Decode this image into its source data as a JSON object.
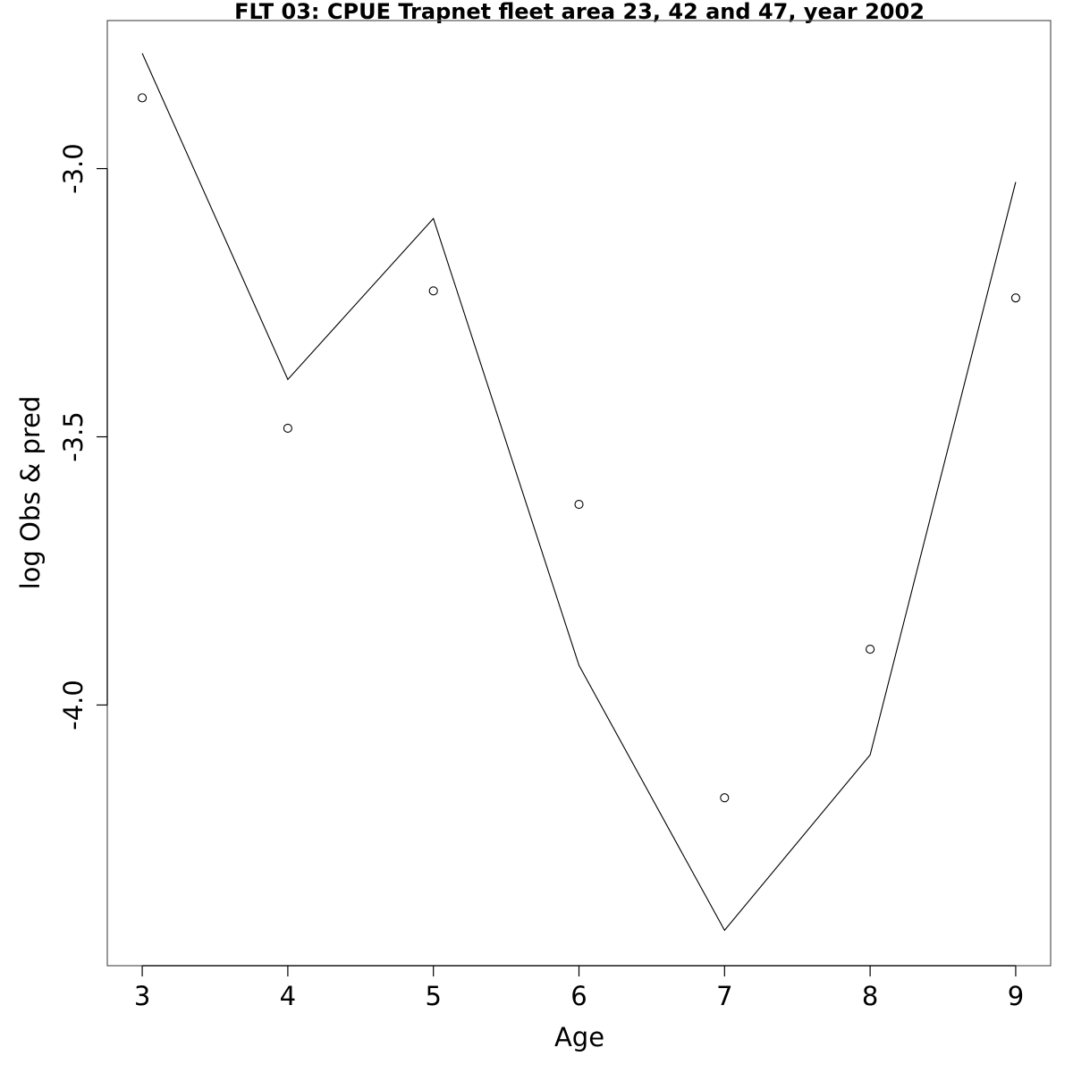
{
  "chart_data": {
    "type": "line",
    "title": "FLT 03: CPUE Trapnet fleet area 23, 42 and 47, year 2002",
    "xlabel": "Age",
    "ylabel": "log Obs & pred",
    "x": [
      3,
      4,
      5,
      6,
      7,
      8,
      9
    ],
    "x_ticks": [
      "3",
      "4",
      "5",
      "6",
      "7",
      "8",
      "9"
    ],
    "y_ticks": [
      -3.0,
      -3.5,
      -4.0
    ],
    "y_tick_labels": [
      "-3.0",
      "-3.5",
      "-4.0"
    ],
    "xlim": [
      2.76,
      9.24
    ],
    "ylim": [
      -4.486,
      -2.724
    ],
    "grid": false,
    "series": [
      {
        "kind": "line",
        "values": [
          -2.785,
          -3.393,
          -3.093,
          -3.926,
          -4.42,
          -4.093,
          -3.025
        ]
      },
      {
        "kind": "points",
        "values": [
          -2.868,
          -3.484,
          -3.228,
          -3.626,
          -4.173,
          -3.896,
          -3.241
        ]
      }
    ]
  }
}
